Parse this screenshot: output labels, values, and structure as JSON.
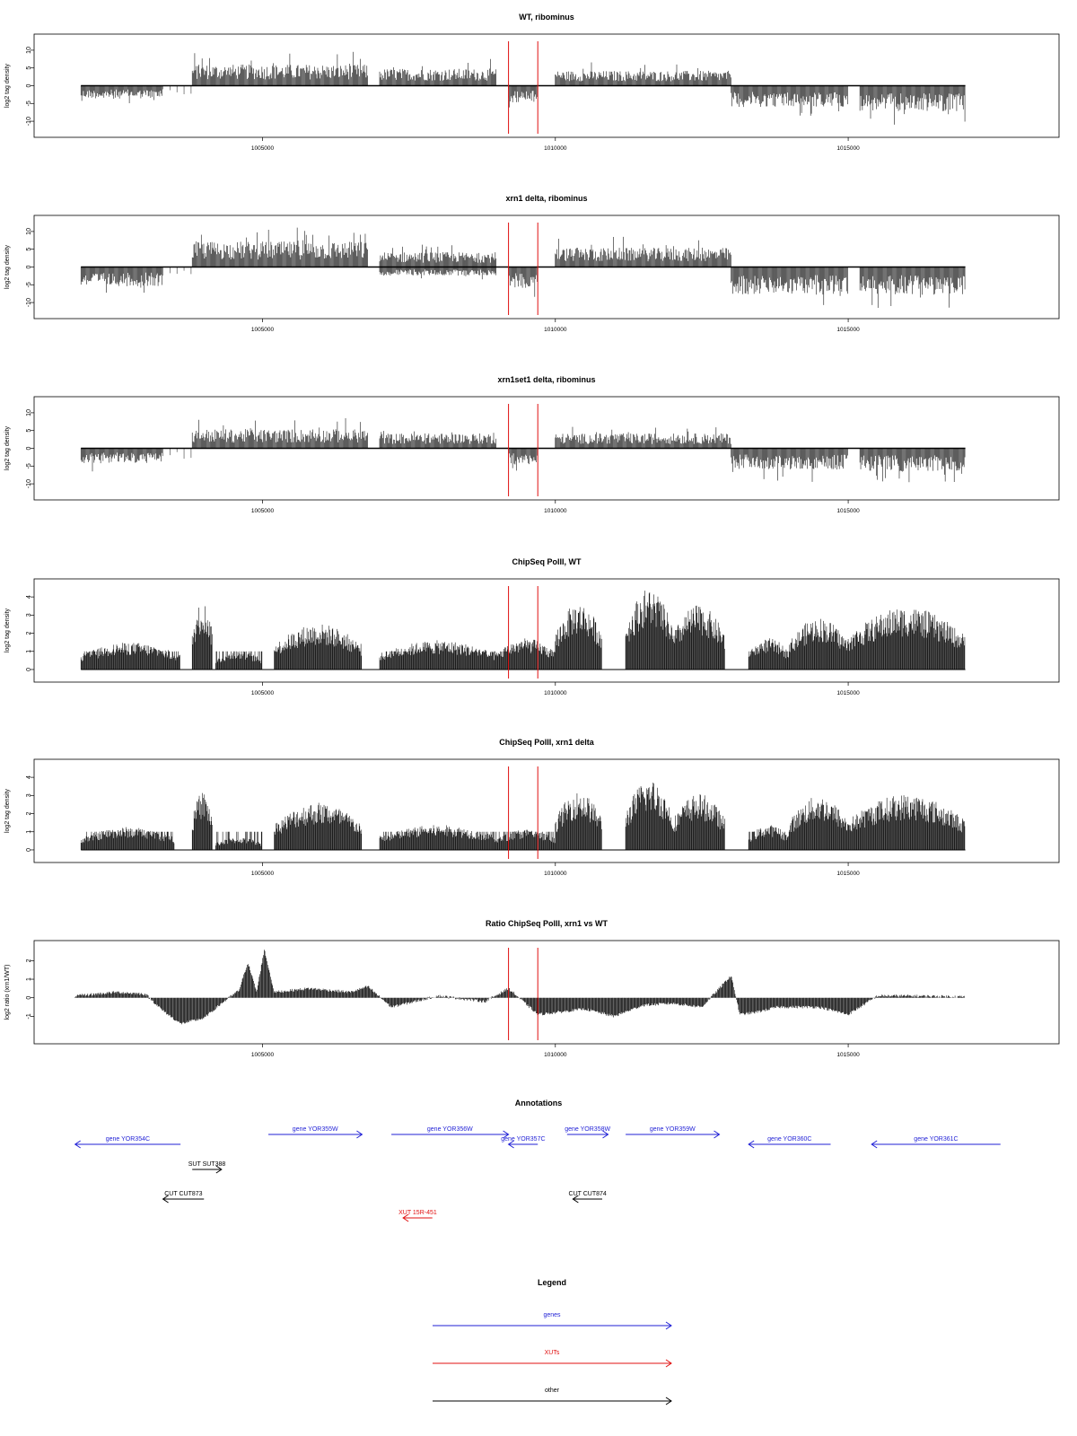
{
  "colors": {
    "gene": "#1f1fd6",
    "xut": "#e01010",
    "other": "#000000",
    "marker": "#e01010",
    "bars": "#000000"
  },
  "x_axis": {
    "ticks": [
      1005000,
      1010000,
      1015000
    ],
    "tick_labels": [
      "1005000",
      "1010000",
      "1015000"
    ]
  },
  "markers": [
    1009200,
    1009700
  ],
  "panels": [
    {
      "id": "wt",
      "title": "WT, ribominus",
      "ylabel": "log2 tag density",
      "ylim": [
        -12,
        12
      ],
      "yticks": [
        -10,
        -5,
        0,
        5,
        10
      ],
      "ytick_labels": [
        "-10",
        "-5",
        "0",
        "5",
        "10"
      ],
      "kind": "bars_signed"
    },
    {
      "id": "xrn1",
      "title": "xrn1 delta, ribominus",
      "ylabel": "log2 tag density",
      "ylim": [
        -12,
        12
      ],
      "yticks": [
        -10,
        -5,
        0,
        5,
        10
      ],
      "ytick_labels": [
        "-10",
        "-5",
        "0",
        "5",
        "10"
      ],
      "kind": "bars_signed"
    },
    {
      "id": "xrn1set1",
      "title": "xrn1set1 delta, ribominus",
      "ylabel": "log2 tag density",
      "ylim": [
        -12,
        12
      ],
      "yticks": [
        -10,
        -5,
        0,
        5,
        10
      ],
      "ytick_labels": [
        "-10",
        "-5",
        "0",
        "5",
        "10"
      ],
      "kind": "bars_signed"
    },
    {
      "id": "chip_wt",
      "title": "ChipSeq PolII, WT",
      "ylabel": "log2 tag density",
      "ylim": [
        -0.2,
        4.5
      ],
      "yticks": [
        0,
        1,
        2,
        3,
        4
      ],
      "ytick_labels": [
        "0",
        "1",
        "2",
        "3",
        "4"
      ],
      "kind": "bars_pos"
    },
    {
      "id": "chip_xrn1",
      "title": "ChipSeq PolII, xrn1 delta",
      "ylabel": "log2 tag density",
      "ylim": [
        -0.2,
        4.5
      ],
      "yticks": [
        0,
        1,
        2,
        3,
        4
      ],
      "ytick_labels": [
        "0",
        "1",
        "2",
        "3",
        "4"
      ],
      "kind": "bars_pos"
    },
    {
      "id": "ratio",
      "title": "Ratio ChipSeq PolII, xrn1 vs WT",
      "ylabel": "log2 ratio (xrn1/WT)",
      "ylim": [
        -2,
        2.6
      ],
      "yticks": [
        -1,
        0,
        1,
        2
      ],
      "ytick_labels": [
        "-1",
        "0",
        "1",
        "2"
      ],
      "kind": "area"
    }
  ],
  "chart_data": [
    {
      "type": "bar",
      "title": "WT, ribominus",
      "ylabel": "log2 tag density",
      "ylim": [
        -12,
        12
      ],
      "x": [
        1002000,
        1003000,
        1003500,
        1004000,
        1005000,
        1006000,
        1007000,
        1008000,
        1009000,
        1009500,
        1010000,
        1011000,
        1012000,
        1013000,
        1014000,
        1015000,
        1016000,
        1017000
      ],
      "y": [
        -3,
        -2.5,
        0,
        3,
        3.5,
        6,
        3,
        4,
        3.5,
        -4,
        2,
        3,
        4,
        0,
        -5,
        -2,
        -5,
        -5
      ]
    },
    {
      "type": "bar",
      "title": "xrn1 delta, ribominus",
      "ylabel": "log2 tag density",
      "ylim": [
        -12,
        12
      ],
      "x": [
        1002000,
        1003000,
        1003500,
        1004000,
        1005000,
        1006000,
        1007000,
        1008000,
        1009000,
        1009500,
        1010000,
        1011000,
        1012000,
        1013000,
        1014000,
        1015000,
        1016000,
        1017000
      ],
      "y": [
        -5,
        -5,
        -1,
        6,
        6,
        7,
        3,
        3,
        3,
        -5,
        3,
        4,
        5,
        0,
        -7,
        -3,
        -6,
        -6
      ]
    },
    {
      "type": "bar",
      "title": "xrn1set1 delta, ribominus",
      "ylabel": "log2 tag density",
      "ylim": [
        -12,
        12
      ],
      "x": [
        1002000,
        1003000,
        1003500,
        1004000,
        1005000,
        1006000,
        1007000,
        1008000,
        1009000,
        1009500,
        1010000,
        1011000,
        1012000,
        1013000,
        1014000,
        1015000,
        1016000,
        1017000
      ],
      "y": [
        -3,
        -4,
        0,
        4,
        4,
        5,
        3,
        3,
        3,
        -4,
        3,
        3,
        4,
        0,
        -5,
        -2,
        -5,
        -5
      ]
    },
    {
      "type": "bar",
      "title": "ChipSeq PolII, WT",
      "ylabel": "log2 tag density",
      "ylim": [
        0,
        4.5
      ],
      "x": [
        1002000,
        1003000,
        1003800,
        1004100,
        1005000,
        1006000,
        1006600,
        1007500,
        1008500,
        1009500,
        1010200,
        1010600,
        1011500,
        1012300,
        1013000,
        1014000,
        1015000,
        1016000,
        1017000
      ],
      "y": [
        1.5,
        1.5,
        3.5,
        0,
        0.5,
        2.5,
        2.5,
        1,
        1.5,
        1.5,
        3.3,
        3.5,
        4.2,
        3,
        0,
        2.5,
        1,
        3,
        3.2
      ]
    },
    {
      "type": "bar",
      "title": "ChipSeq PolII, xrn1 delta",
      "ylabel": "log2 tag density",
      "ylim": [
        0,
        4.5
      ],
      "x": [
        1002000,
        1003000,
        1003800,
        1004100,
        1005000,
        1006000,
        1006600,
        1007500,
        1008500,
        1009500,
        1010200,
        1010600,
        1011500,
        1012300,
        1013000,
        1014000,
        1015000,
        1016000,
        1017000
      ],
      "y": [
        1,
        1,
        3,
        0,
        0.5,
        2.5,
        2.3,
        1,
        1.3,
        1,
        2.8,
        2.8,
        3.5,
        2.8,
        0,
        2.5,
        1,
        2.8,
        2.9
      ]
    },
    {
      "type": "area",
      "title": "Ratio ChipSeq PolII, xrn1 vs WT",
      "ylabel": "log2 ratio (xrn1/WT)",
      "ylim": [
        -2,
        2.6
      ],
      "x": [
        1001800,
        1002500,
        1003000,
        1003300,
        1003600,
        1004000,
        1004300,
        1004600,
        1004750,
        1004900,
        1005030,
        1005200,
        1005800,
        1006500,
        1006800,
        1007200,
        1008000,
        1008800,
        1009200,
        1009700,
        1010000,
        1010500,
        1011000,
        1011500,
        1012000,
        1012500,
        1012800,
        1013000,
        1013150,
        1013400,
        1013800,
        1014500,
        1015000,
        1015500,
        1016000,
        1017000
      ],
      "y": [
        0.1,
        0.3,
        0.2,
        -0.7,
        -1.4,
        -1.1,
        -0.3,
        0.4,
        1.9,
        0.3,
        2.6,
        0.3,
        0.5,
        0.3,
        0.6,
        -0.5,
        0.1,
        -0.2,
        0.5,
        -0.9,
        -0.8,
        -0.6,
        -1,
        -0.4,
        -0.3,
        -0.5,
        0.5,
        1.2,
        -0.9,
        -0.8,
        -0.5,
        -0.5,
        -0.9,
        0.1,
        0.1,
        0.05
      ]
    }
  ],
  "annotations": {
    "title": "Annotations",
    "features": [
      {
        "label": "gene YOR354C",
        "type": "gene",
        "start": 1001800,
        "end": 1003600,
        "strand": "-",
        "row": 2
      },
      {
        "label": "gene YOR355W",
        "type": "gene",
        "start": 1005100,
        "end": 1006700,
        "strand": "+",
        "row": 1
      },
      {
        "label": "gene YOR356W",
        "type": "gene",
        "start": 1007200,
        "end": 1009200,
        "strand": "+",
        "row": 1
      },
      {
        "label": "gene YOR357C",
        "type": "gene",
        "start": 1009200,
        "end": 1009700,
        "strand": "-",
        "row": 2
      },
      {
        "label": "gene YOR358W",
        "type": "gene",
        "start": 1010200,
        "end": 1010900,
        "strand": "+",
        "row": 1
      },
      {
        "label": "gene YOR359W",
        "type": "gene",
        "start": 1011200,
        "end": 1012800,
        "strand": "+",
        "row": 1
      },
      {
        "label": "gene YOR360C",
        "type": "gene",
        "start": 1013300,
        "end": 1014700,
        "strand": "-",
        "row": 2
      },
      {
        "label": "gene YOR361C",
        "type": "gene",
        "start": 1015400,
        "end": 1017600,
        "strand": "-",
        "row": 2
      },
      {
        "label": "SUT SUT388",
        "type": "other",
        "start": 1003800,
        "end": 1004300,
        "strand": "+",
        "row": 3
      },
      {
        "label": "CUT CUT873",
        "type": "other",
        "start": 1003300,
        "end": 1004000,
        "strand": "-",
        "row": 4
      },
      {
        "label": "CUT CUT874",
        "type": "other",
        "start": 1010300,
        "end": 1010800,
        "strand": "-",
        "row": 4
      },
      {
        "label": "XUT 15R-451",
        "type": "xut",
        "start": 1007400,
        "end": 1007900,
        "strand": "-",
        "row": 5
      }
    ]
  },
  "legend": {
    "title": "Legend",
    "items": [
      {
        "label": "genes",
        "type": "gene"
      },
      {
        "label": "XUTs",
        "type": "xut"
      },
      {
        "label": "other",
        "type": "other"
      }
    ]
  }
}
